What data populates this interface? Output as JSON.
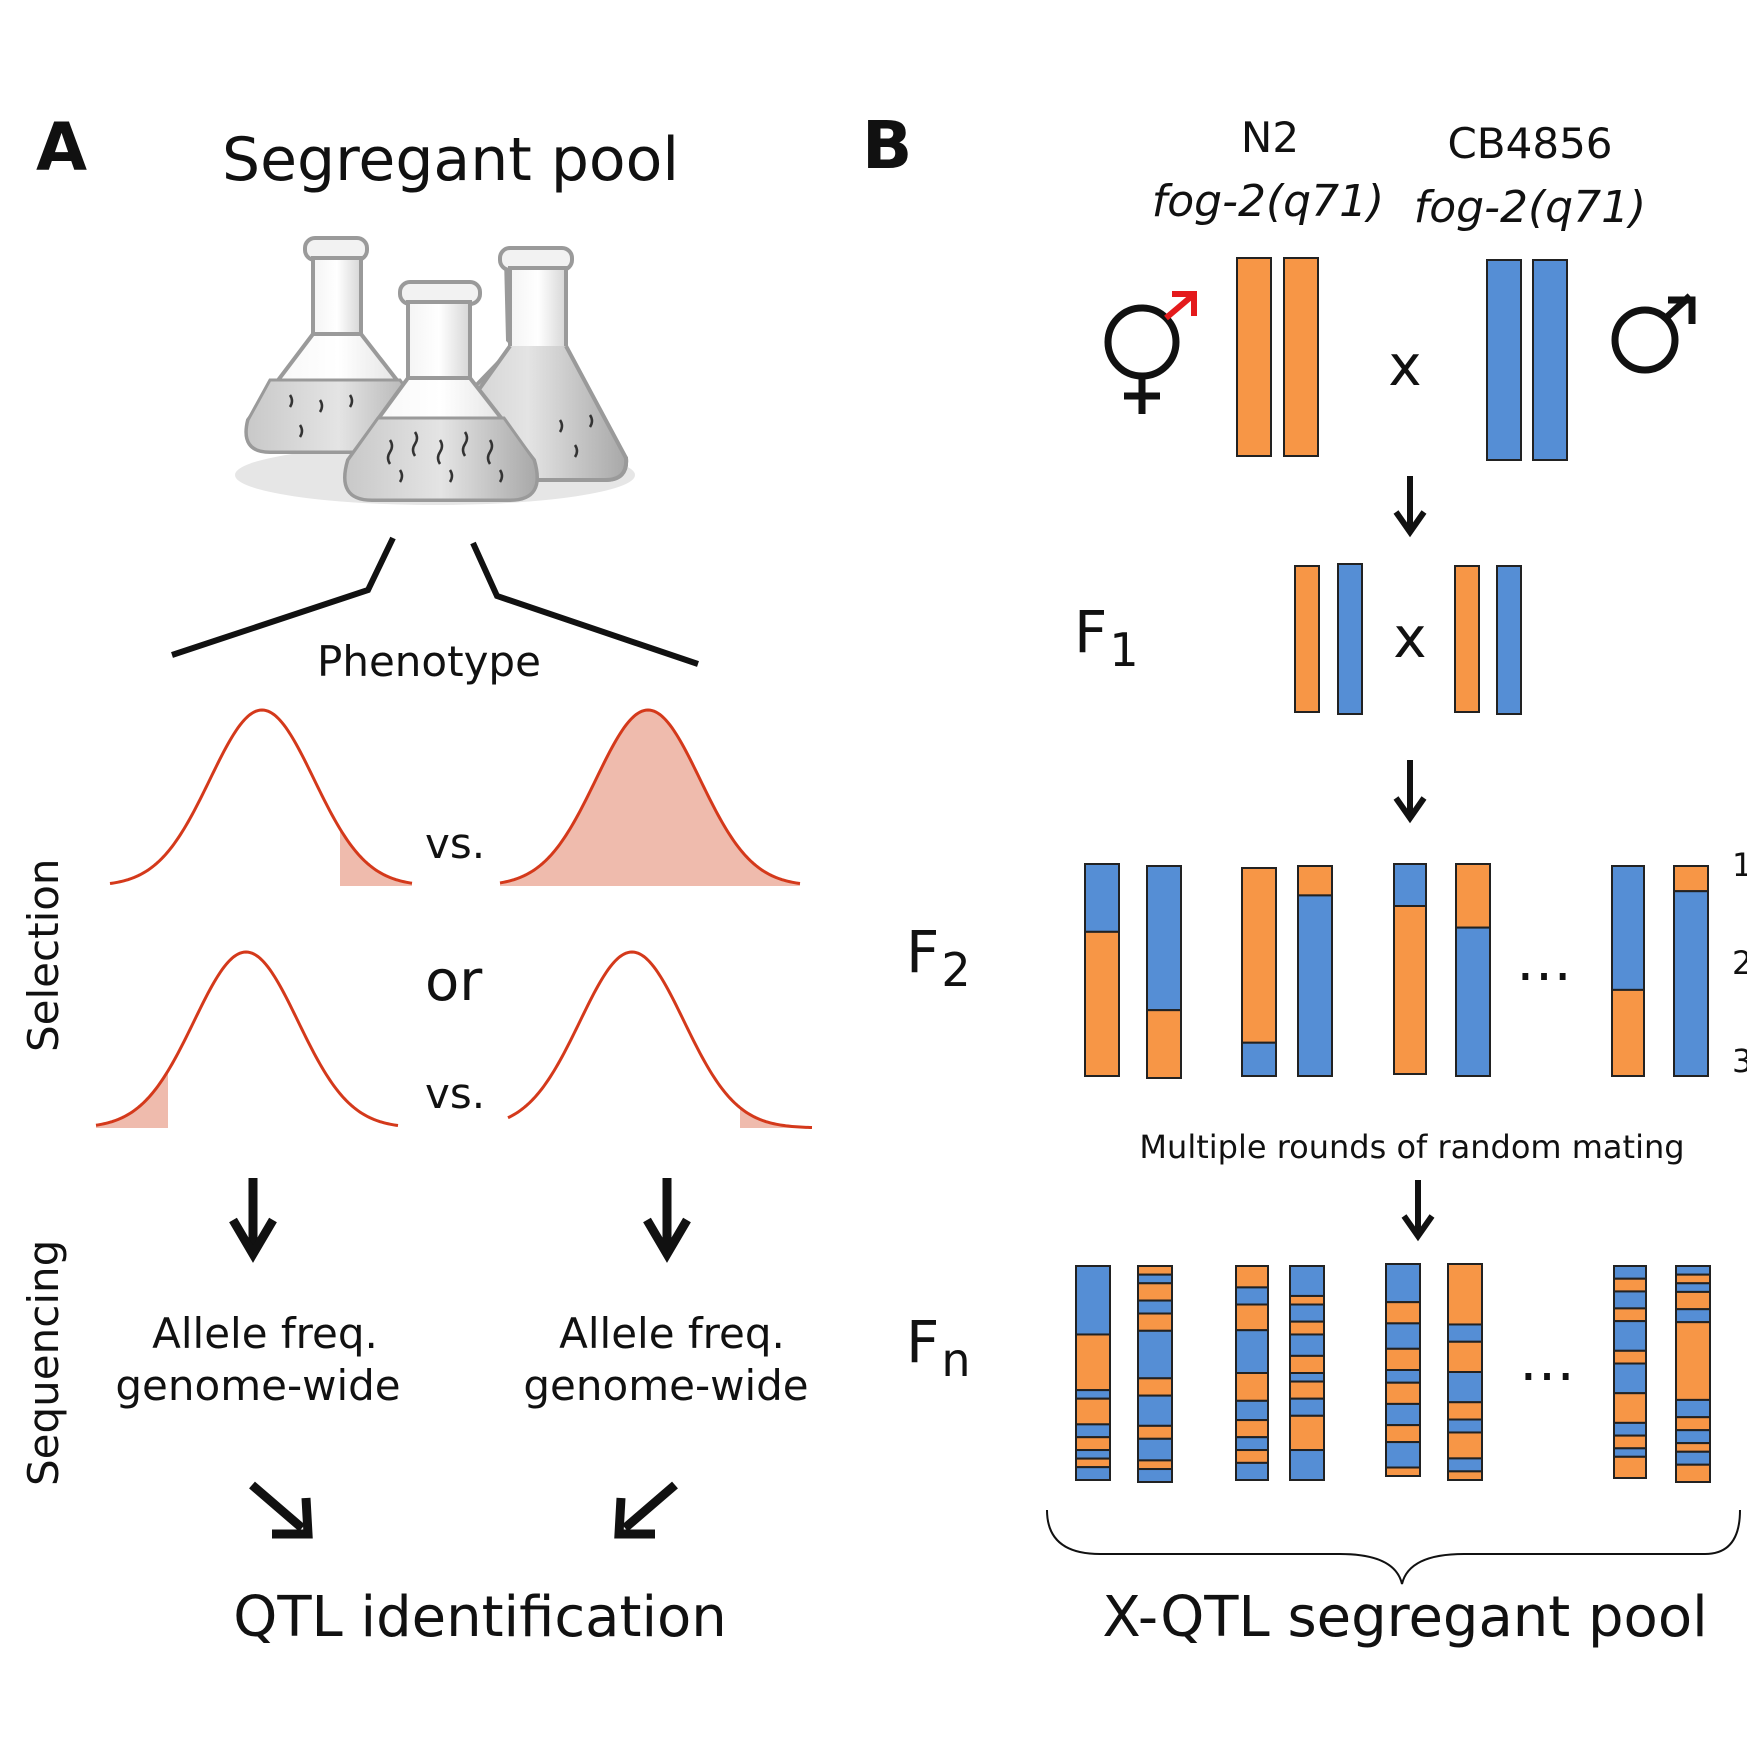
{
  "colors": {
    "orange": "#F79646",
    "blue": "#558ED5",
    "curve": "#D4391B",
    "shade": "#EFBBAD",
    "male_arrow": "#E41A1C"
  },
  "panel_a": {
    "letter": "A",
    "title": "Segregant pool",
    "phenotype": "Phenotype",
    "selection": "Selection",
    "sequencing": "Sequencing",
    "vs_top": "vs.",
    "or_label": "or",
    "vs_bottom": "vs.",
    "allele_line1_left": "Allele freq.",
    "allele_line2_left": "genome-wide",
    "allele_line1_right": "Allele freq.",
    "allele_line2_right": "genome-wide",
    "qtl": "QTL identification",
    "flask_icon": "flask-icon"
  },
  "panel_b": {
    "letter": "B",
    "strain1_name": "N2",
    "strain1_allele": "fog-2(q71)",
    "strain2_name": "CB4856",
    "strain2_allele": "fog-2(q71)",
    "cross_top": "x",
    "cross_f1": "x",
    "female_symbol": "♀",
    "male_symbol": "♂",
    "f1": {
      "base": "F",
      "sub": "1"
    },
    "f2": {
      "base": "F",
      "sub": "2"
    },
    "fn": {
      "base": "F",
      "sub": "n"
    },
    "ellipsis_f2": "…",
    "ellipsis_fn": "…",
    "edge_labels": [
      "1",
      "2",
      "3"
    ],
    "random_mating": "Multiple rounds of random mating",
    "pool": "X-QTL segregant pool"
  }
}
